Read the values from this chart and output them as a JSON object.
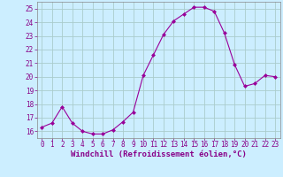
{
  "x": [
    0,
    1,
    2,
    3,
    4,
    5,
    6,
    7,
    8,
    9,
    10,
    11,
    12,
    13,
    14,
    15,
    16,
    17,
    18,
    19,
    20,
    21,
    22,
    23
  ],
  "y": [
    16.3,
    16.6,
    17.8,
    16.6,
    16.0,
    15.8,
    15.8,
    16.1,
    16.7,
    17.4,
    20.1,
    21.6,
    23.1,
    24.1,
    24.6,
    25.1,
    25.1,
    24.8,
    23.2,
    20.9,
    19.3,
    19.5,
    20.1,
    20.0
  ],
  "line_color": "#990099",
  "marker": "D",
  "marker_size": 2.0,
  "bg_color": "#cceeff",
  "grid_color": "#aacccc",
  "xlabel": "Windchill (Refroidissement éolien,°C)",
  "xlabel_color": "#880088",
  "tick_color": "#880088",
  "axis_color": "#888888",
  "ylim": [
    15.5,
    25.5
  ],
  "xlim": [
    -0.5,
    23.5
  ],
  "yticks": [
    16,
    17,
    18,
    19,
    20,
    21,
    22,
    23,
    24,
    25
  ],
  "xticks": [
    0,
    1,
    2,
    3,
    4,
    5,
    6,
    7,
    8,
    9,
    10,
    11,
    12,
    13,
    14,
    15,
    16,
    17,
    18,
    19,
    20,
    21,
    22,
    23
  ],
  "tick_fontsize": 5.5,
  "xlabel_fontsize": 6.5
}
